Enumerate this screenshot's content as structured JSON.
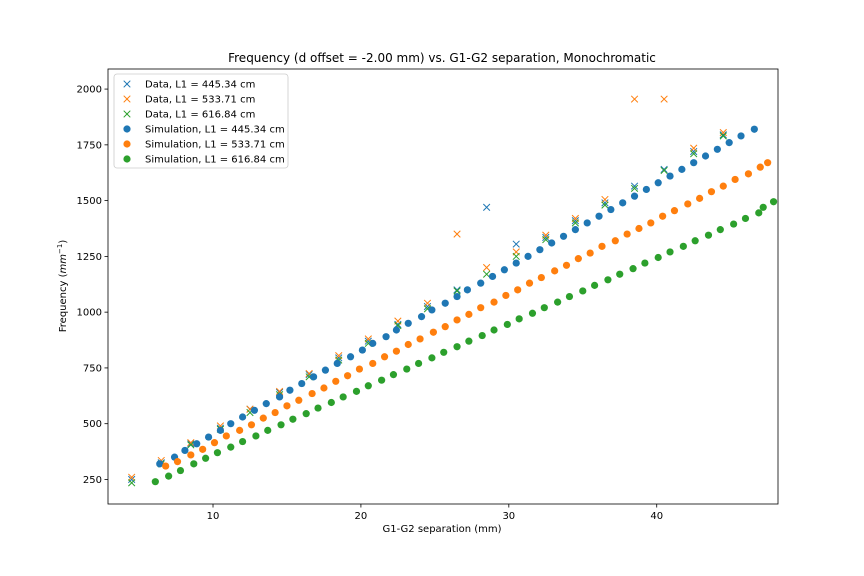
{
  "chart_data": {
    "type": "scatter",
    "title": "Frequency (d offset = -2.00 mm) vs. G1-G2 separation, Monochromatic",
    "xlabel": "G1-G2 separation (mm)",
    "ylabel_main": "Frequency (",
    "ylabel_unit_base": "mm",
    "ylabel_unit_exp": "−1",
    "ylabel_close": ")",
    "xlim": [
      2.9,
      48.2
    ],
    "ylim": [
      140,
      2090
    ],
    "xticks": [
      10,
      20,
      30,
      40
    ],
    "yticks": [
      250,
      500,
      750,
      1000,
      1250,
      1500,
      1750,
      2000
    ],
    "legend_position": "upper-left",
    "colors": {
      "blue": "#1f77b4",
      "orange": "#ff7f0e",
      "green": "#2ca02c"
    },
    "series": [
      {
        "name": "Data, L1 = 445.34 cm",
        "marker": "x",
        "color": "#1f77b4",
        "points": [
          [
            4.5,
            250
          ],
          [
            6.5,
            325
          ],
          [
            8.5,
            410
          ],
          [
            10.5,
            480
          ],
          [
            12.5,
            565
          ],
          [
            14.5,
            640
          ],
          [
            16.5,
            720
          ],
          [
            18.5,
            795
          ],
          [
            20.5,
            870
          ],
          [
            22.5,
            945
          ],
          [
            24.5,
            1025
          ],
          [
            26.5,
            1100
          ],
          [
            28.5,
            1470
          ],
          [
            30.5,
            1305
          ],
          [
            32.5,
            1335
          ],
          [
            34.5,
            1410
          ],
          [
            36.5,
            1490
          ],
          [
            38.5,
            1565
          ],
          [
            40.5,
            1640
          ],
          [
            42.5,
            1720
          ],
          [
            44.5,
            1795
          ]
        ]
      },
      {
        "name": "Data, L1 = 533.71 cm",
        "marker": "x",
        "color": "#ff7f0e",
        "points": [
          [
            4.5,
            260
          ],
          [
            6.5,
            335
          ],
          [
            8.5,
            415
          ],
          [
            10.5,
            490
          ],
          [
            12.5,
            565
          ],
          [
            14.5,
            645
          ],
          [
            16.5,
            725
          ],
          [
            18.5,
            805
          ],
          [
            20.5,
            880
          ],
          [
            22.5,
            960
          ],
          [
            24.5,
            1040
          ],
          [
            26.5,
            1350
          ],
          [
            28.5,
            1200
          ],
          [
            30.5,
            1270
          ],
          [
            32.5,
            1345
          ],
          [
            34.5,
            1420
          ],
          [
            36.5,
            1505
          ],
          [
            38.5,
            1955
          ],
          [
            40.5,
            1955
          ],
          [
            42.5,
            1735
          ],
          [
            44.5,
            1805
          ]
        ]
      },
      {
        "name": "Data, L1 = 616.84 cm",
        "marker": "x",
        "color": "#2ca02c",
        "points": [
          [
            4.5,
            235
          ],
          [
            6.5,
            320
          ],
          [
            8.5,
            405
          ],
          [
            10.5,
            475
          ],
          [
            12.5,
            550
          ],
          [
            14.5,
            630
          ],
          [
            16.5,
            710
          ],
          [
            18.5,
            785
          ],
          [
            20.5,
            860
          ],
          [
            22.5,
            940
          ],
          [
            24.5,
            1015
          ],
          [
            26.5,
            1095
          ],
          [
            28.5,
            1170
          ],
          [
            30.5,
            1250
          ],
          [
            32.5,
            1325
          ],
          [
            34.5,
            1400
          ],
          [
            36.5,
            1480
          ],
          [
            38.5,
            1555
          ],
          [
            40.5,
            1635
          ],
          [
            42.5,
            1710
          ],
          [
            44.5,
            1790
          ]
        ]
      },
      {
        "name": "Simulation, L1 = 445.34 cm",
        "marker": "o",
        "color": "#1f77b4",
        "points": [
          [
            6.4,
            320
          ],
          [
            7.4,
            350
          ],
          [
            8.1,
            380
          ],
          [
            8.9,
            410
          ],
          [
            9.7,
            440
          ],
          [
            10.5,
            470
          ],
          [
            11.2,
            500
          ],
          [
            12.0,
            530
          ],
          [
            12.8,
            560
          ],
          [
            13.6,
            590
          ],
          [
            14.5,
            620
          ],
          [
            15.2,
            650
          ],
          [
            16.0,
            680
          ],
          [
            16.8,
            710
          ],
          [
            17.6,
            740
          ],
          [
            18.4,
            770
          ],
          [
            19.3,
            800
          ],
          [
            20.1,
            830
          ],
          [
            20.8,
            860
          ],
          [
            21.7,
            890
          ],
          [
            22.4,
            920
          ],
          [
            23.2,
            950
          ],
          [
            24.1,
            980
          ],
          [
            24.8,
            1010
          ],
          [
            25.7,
            1040
          ],
          [
            26.5,
            1070
          ],
          [
            27.2,
            1100
          ],
          [
            28.1,
            1130
          ],
          [
            28.9,
            1160
          ],
          [
            29.7,
            1190
          ],
          [
            30.5,
            1220
          ],
          [
            31.3,
            1250
          ],
          [
            32.1,
            1280
          ],
          [
            32.9,
            1310
          ],
          [
            33.7,
            1340
          ],
          [
            34.5,
            1370
          ],
          [
            35.3,
            1400
          ],
          [
            36.1,
            1430
          ],
          [
            36.9,
            1460
          ],
          [
            37.7,
            1490
          ],
          [
            38.5,
            1520
          ],
          [
            39.3,
            1550
          ],
          [
            40.1,
            1580
          ],
          [
            40.9,
            1610
          ],
          [
            41.7,
            1640
          ],
          [
            42.5,
            1670
          ],
          [
            43.3,
            1700
          ],
          [
            44.1,
            1730
          ],
          [
            44.9,
            1760
          ],
          [
            45.7,
            1790
          ],
          [
            46.6,
            1820
          ]
        ]
      },
      {
        "name": "Simulation, L1 = 533.71 cm",
        "marker": "o",
        "color": "#ff7f0e",
        "points": [
          [
            6.8,
            310
          ],
          [
            7.6,
            330
          ],
          [
            8.5,
            360
          ],
          [
            9.3,
            385
          ],
          [
            10.1,
            415
          ],
          [
            10.9,
            445
          ],
          [
            11.8,
            470
          ],
          [
            12.6,
            495
          ],
          [
            13.4,
            525
          ],
          [
            14.2,
            550
          ],
          [
            15.0,
            580
          ],
          [
            15.8,
            605
          ],
          [
            16.7,
            635
          ],
          [
            17.5,
            660
          ],
          [
            18.3,
            690
          ],
          [
            19.1,
            715
          ],
          [
            19.9,
            745
          ],
          [
            20.8,
            770
          ],
          [
            21.6,
            800
          ],
          [
            22.4,
            825
          ],
          [
            23.2,
            855
          ],
          [
            24.0,
            880
          ],
          [
            24.9,
            910
          ],
          [
            25.7,
            935
          ],
          [
            26.5,
            965
          ],
          [
            27.3,
            990
          ],
          [
            28.1,
            1020
          ],
          [
            29.0,
            1045
          ],
          [
            29.8,
            1075
          ],
          [
            30.6,
            1100
          ],
          [
            31.4,
            1130
          ],
          [
            32.2,
            1155
          ],
          [
            33.1,
            1185
          ],
          [
            33.9,
            1210
          ],
          [
            34.7,
            1240
          ],
          [
            35.5,
            1265
          ],
          [
            36.3,
            1295
          ],
          [
            37.2,
            1320
          ],
          [
            38.0,
            1350
          ],
          [
            38.8,
            1375
          ],
          [
            39.6,
            1400
          ],
          [
            40.4,
            1430
          ],
          [
            41.2,
            1455
          ],
          [
            42.1,
            1485
          ],
          [
            42.9,
            1510
          ],
          [
            43.7,
            1540
          ],
          [
            44.5,
            1565
          ],
          [
            45.3,
            1595
          ],
          [
            46.2,
            1620
          ],
          [
            47.0,
            1650
          ],
          [
            47.5,
            1670
          ]
        ]
      },
      {
        "name": "Simulation, L1 = 616.84 cm",
        "marker": "o",
        "color": "#2ca02c",
        "points": [
          [
            6.1,
            240
          ],
          [
            7.0,
            265
          ],
          [
            7.8,
            290
          ],
          [
            8.7,
            320
          ],
          [
            9.5,
            345
          ],
          [
            10.3,
            370
          ],
          [
            11.2,
            395
          ],
          [
            12.0,
            420
          ],
          [
            12.9,
            445
          ],
          [
            13.7,
            470
          ],
          [
            14.6,
            495
          ],
          [
            15.4,
            520
          ],
          [
            16.3,
            545
          ],
          [
            17.1,
            570
          ],
          [
            18.0,
            595
          ],
          [
            18.8,
            620
          ],
          [
            19.7,
            645
          ],
          [
            20.5,
            670
          ],
          [
            21.4,
            695
          ],
          [
            22.2,
            720
          ],
          [
            23.1,
            745
          ],
          [
            23.9,
            770
          ],
          [
            24.8,
            795
          ],
          [
            25.6,
            820
          ],
          [
            26.5,
            845
          ],
          [
            27.3,
            870
          ],
          [
            28.2,
            895
          ],
          [
            29.0,
            920
          ],
          [
            29.9,
            945
          ],
          [
            30.7,
            970
          ],
          [
            31.6,
            995
          ],
          [
            32.4,
            1020
          ],
          [
            33.3,
            1045
          ],
          [
            34.1,
            1070
          ],
          [
            35.0,
            1095
          ],
          [
            35.8,
            1120
          ],
          [
            36.7,
            1145
          ],
          [
            37.5,
            1170
          ],
          [
            38.4,
            1195
          ],
          [
            39.2,
            1220
          ],
          [
            40.1,
            1245
          ],
          [
            40.9,
            1270
          ],
          [
            41.8,
            1295
          ],
          [
            42.6,
            1320
          ],
          [
            43.5,
            1345
          ],
          [
            44.3,
            1370
          ],
          [
            45.2,
            1395
          ],
          [
            46.0,
            1420
          ],
          [
            46.9,
            1445
          ],
          [
            47.2,
            1470
          ],
          [
            47.9,
            1495
          ]
        ]
      }
    ]
  }
}
